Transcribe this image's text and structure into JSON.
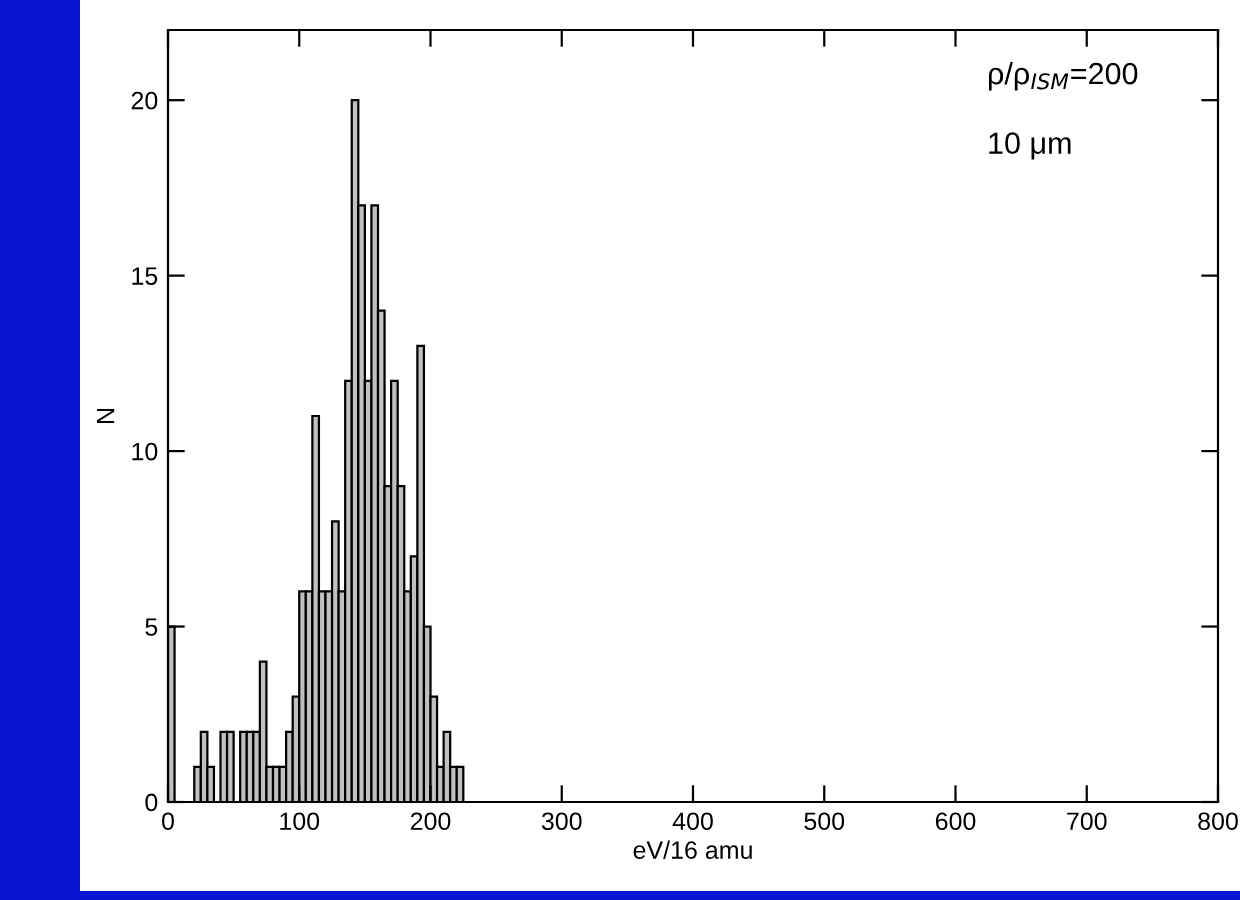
{
  "chart_data": {
    "type": "histogram",
    "xlabel": "eV/16 amu",
    "ylabel": "N",
    "annotations": [
      "ρ/ρ$_{ISM}$=200",
      "10 μm"
    ],
    "bins": [
      0,
      5,
      10,
      15,
      20,
      25,
      30,
      35,
      40,
      45,
      50,
      55,
      60,
      65,
      70,
      75,
      80,
      85,
      90,
      95,
      100,
      105,
      110,
      115,
      120,
      125,
      130,
      135,
      140,
      145,
      150,
      155,
      160,
      165,
      170,
      175,
      180,
      185,
      190,
      195,
      200,
      205,
      210,
      215,
      220,
      225
    ],
    "values": [
      5,
      0,
      0,
      0,
      1,
      2,
      1,
      0,
      2,
      2,
      0,
      2,
      2,
      2,
      4,
      1,
      1,
      1,
      2,
      3,
      6,
      6,
      11,
      6,
      6,
      8,
      6,
      12,
      20,
      17,
      12,
      17,
      14,
      9,
      12,
      9,
      6,
      7,
      13,
      5,
      3,
      1,
      2,
      1,
      1
    ],
    "color": "#c0c0c0",
    "xlim": [
      0,
      800
    ],
    "xticks": [
      0,
      100,
      200,
      300,
      400,
      500,
      600,
      700,
      800
    ],
    "ylim": [
      0,
      22
    ],
    "yticks": [
      0,
      5,
      10,
      15,
      20
    ],
    "grid": false
  }
}
